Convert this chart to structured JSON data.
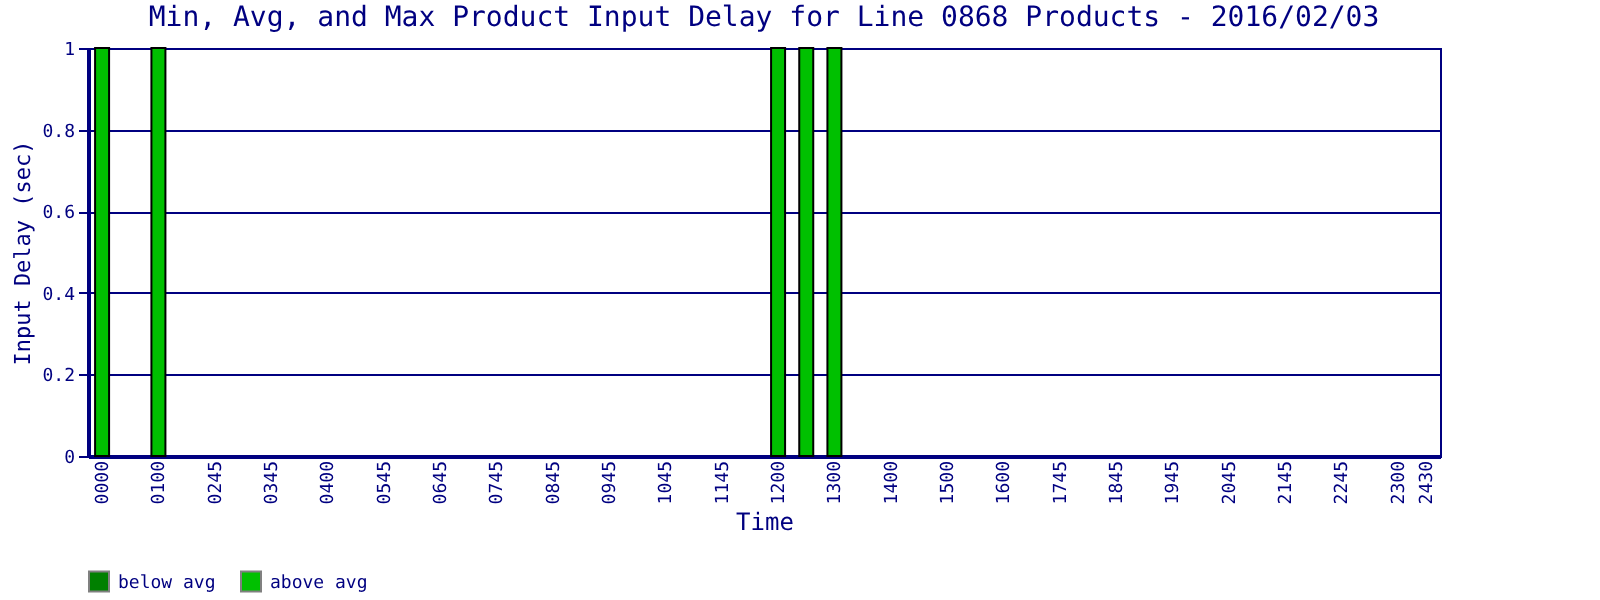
{
  "chart_data": {
    "type": "bar",
    "title": "Min, Avg, and Max Product Input Delay for Line 0868 Products - 2016/02/03",
    "xlabel": "Time",
    "ylabel": "Input Delay (sec)",
    "categories": [
      "0000",
      null,
      "0100",
      null,
      "0245",
      null,
      "0345",
      null,
      "0400",
      null,
      "0545",
      null,
      "0645",
      null,
      "0745",
      null,
      "0845",
      null,
      "0945",
      null,
      "1045",
      null,
      "1145",
      null,
      "1200",
      null,
      "1300",
      null,
      "1400",
      null,
      "1500",
      null,
      "1600",
      null,
      "1745",
      null,
      "1845",
      null,
      "1945",
      null,
      "2045",
      null,
      "2145",
      null,
      "2245",
      null,
      "2300",
      "2430"
    ],
    "series": [
      {
        "name": "below avg",
        "color": "#008000",
        "values": [
          null,
          null,
          null,
          null,
          null,
          null,
          null,
          null,
          null,
          null,
          null,
          null,
          null,
          null,
          null,
          null,
          null,
          null,
          null,
          null,
          null,
          null,
          null,
          null,
          null,
          null,
          null,
          null,
          null,
          null,
          null,
          null,
          null,
          null,
          null,
          null,
          null,
          null,
          null,
          null,
          null,
          null,
          null,
          null,
          null,
          null,
          null,
          null
        ]
      },
      {
        "name": "above avg",
        "color": "#00c000",
        "values": [
          1,
          null,
          1,
          null,
          null,
          null,
          null,
          null,
          null,
          null,
          null,
          null,
          null,
          null,
          null,
          null,
          null,
          null,
          null,
          null,
          null,
          null,
          null,
          null,
          1,
          1,
          1,
          null,
          null,
          null,
          null,
          null,
          null,
          null,
          null,
          null,
          null,
          null,
          null,
          null,
          null,
          null,
          null,
          null,
          null,
          null,
          null,
          null
        ]
      }
    ],
    "ylim": [
      0,
      1
    ],
    "yticks": [
      0,
      0.2,
      0.4,
      0.6,
      0.8,
      1
    ],
    "grid": "y",
    "legend": "bottom"
  }
}
